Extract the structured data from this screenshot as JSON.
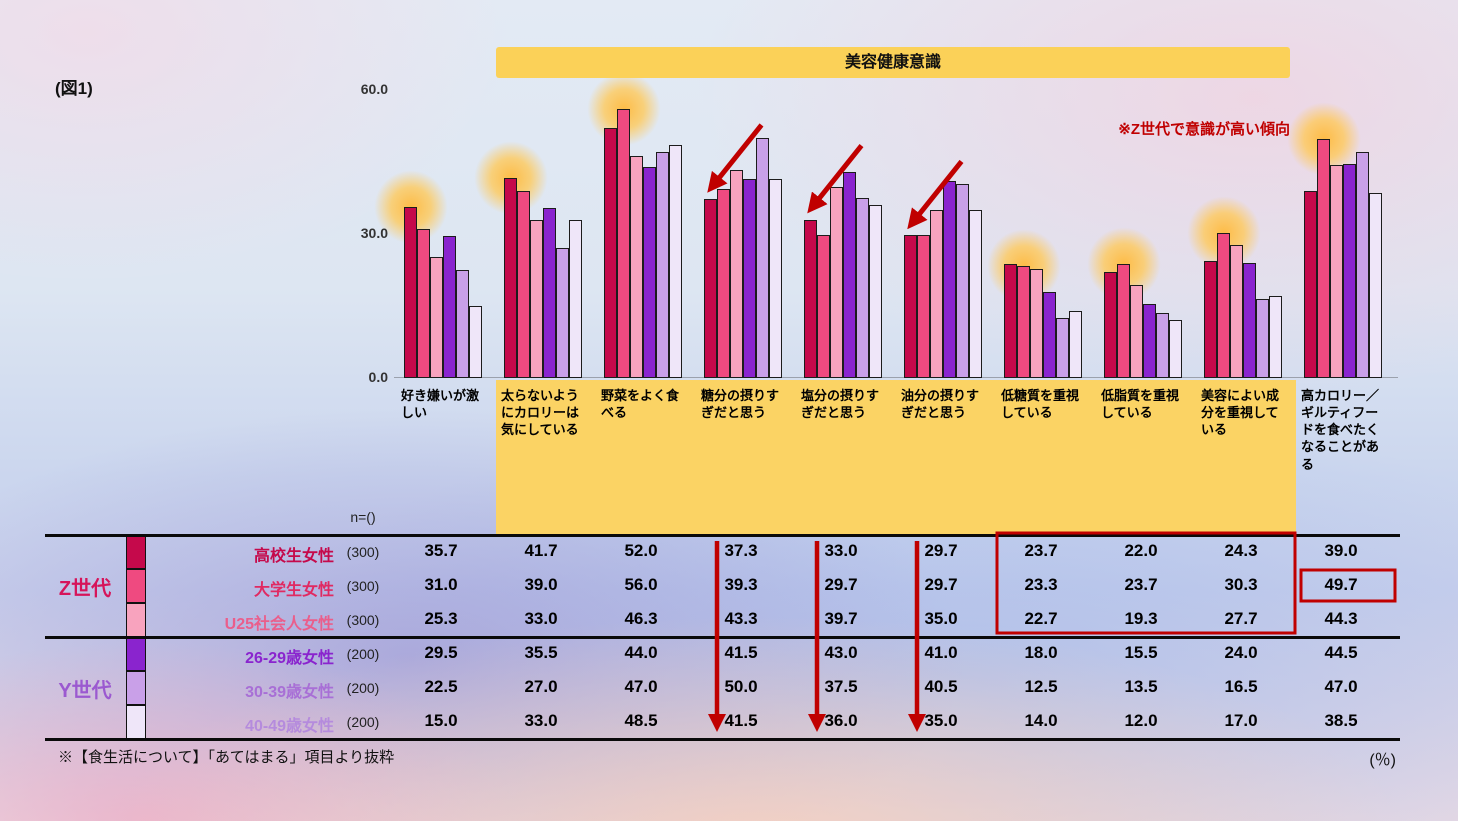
{
  "figure_label": "(図1)",
  "banner_title": "美容健康意識",
  "note_top_right": "※Z世代で意識が高い傾向",
  "note_bottom_left": "※【食生活について】「あてはまる」項目より抜粋",
  "unit_label": "(％)",
  "n_header": "n=()",
  "colors": {
    "accent_red": "#C00000",
    "band_yellow": "#FBD364",
    "banner_yellow": "#FBD158",
    "glow_orange": "#FFBA3E",
    "table_line": "#0A0A0A",
    "gen_z_label": "#D6145A",
    "gen_y_label": "#9B59D0"
  },
  "y_axis": {
    "ticks": [
      {
        "label": "60.0",
        "value": 60
      },
      {
        "label": "30.0",
        "value": 30
      },
      {
        "label": "0.0",
        "value": 0
      }
    ],
    "max": 60
  },
  "generations": [
    {
      "label": "Z世代",
      "color": "#D6145A",
      "rows": [
        0,
        1,
        2
      ]
    },
    {
      "label": "Y世代",
      "color": "#9B59D0",
      "rows": [
        3,
        4,
        5
      ]
    }
  ],
  "chart_data": {
    "type": "bar",
    "title": "美容健康意識",
    "xlabel": "",
    "ylabel": "(％)",
    "ylim": [
      0,
      60
    ],
    "legend_position": "table-left",
    "grid": false,
    "categories": [
      "好き嫌いが激しい",
      "太らないようにカロリーは気にしている",
      "野菜をよく食べる",
      "糖分の摂りすぎだと思う",
      "塩分の摂りすぎだと思う",
      "油分の摂りすぎだと思う",
      "低糖質を重視している",
      "低脂質を重視している",
      "美容によい成分を重視している",
      "高カロリー／ギルティフードを食べたくなることがある"
    ],
    "series": [
      {
        "name": "高校生女性",
        "generation": "Z世代",
        "n": "(300)",
        "color": "#C5094B",
        "label_color": "#C5094B",
        "values": [
          35.7,
          41.7,
          52.0,
          37.3,
          33.0,
          29.7,
          23.7,
          22.0,
          24.3,
          39.0
        ]
      },
      {
        "name": "大学生女性",
        "generation": "Z世代",
        "n": "(300)",
        "color": "#EF4A80",
        "label_color": "#E02A62",
        "values": [
          31.0,
          39.0,
          56.0,
          39.3,
          29.7,
          29.7,
          23.3,
          23.7,
          30.3,
          49.7
        ]
      },
      {
        "name": "U25社会人女性",
        "generation": "Z世代",
        "n": "(300)",
        "color": "#F8A3BE",
        "label_color": "#EA5E8B",
        "values": [
          25.3,
          33.0,
          46.3,
          43.3,
          39.7,
          35.0,
          22.7,
          19.3,
          27.7,
          44.3
        ]
      },
      {
        "name": "26-29歳女性",
        "generation": "Y世代",
        "n": "(200)",
        "color": "#8A24CE",
        "label_color": "#8A24CE",
        "values": [
          29.5,
          35.5,
          44.0,
          41.5,
          43.0,
          41.0,
          18.0,
          15.5,
          24.0,
          44.5
        ]
      },
      {
        "name": "30-39歳女性",
        "generation": "Y世代",
        "n": "(200)",
        "color": "#C9A0E8",
        "label_color": "#A86FD6",
        "values": [
          22.5,
          27.0,
          47.0,
          50.0,
          37.5,
          40.5,
          12.5,
          13.5,
          16.5,
          47.0
        ]
      },
      {
        "name": "40-49歳女性",
        "generation": "Y世代",
        "n": "(200)",
        "color": "#EFE6F9",
        "label_color": "#B58BDD",
        "values": [
          15.0,
          33.0,
          48.5,
          41.5,
          36.0,
          35.0,
          14.0,
          12.0,
          17.0,
          38.5
        ]
      }
    ],
    "annotations": {
      "glow_highlights": [
        {
          "category": 0,
          "series": 0
        },
        {
          "category": 1,
          "series": 0
        },
        {
          "category": 2,
          "series": 1
        },
        {
          "category": 6,
          "series": 1
        },
        {
          "category": 7,
          "series": 1
        },
        {
          "category": 8,
          "series": 1
        },
        {
          "category": 9,
          "series": 1
        }
      ],
      "arrow_categories": [
        3,
        4,
        5
      ],
      "band_categories": [
        1,
        8
      ],
      "red_box_table": {
        "columns": [
          6,
          8
        ],
        "rows": [
          0,
          2
        ]
      },
      "red_box_value": {
        "column": 9,
        "row": 1
      }
    }
  }
}
